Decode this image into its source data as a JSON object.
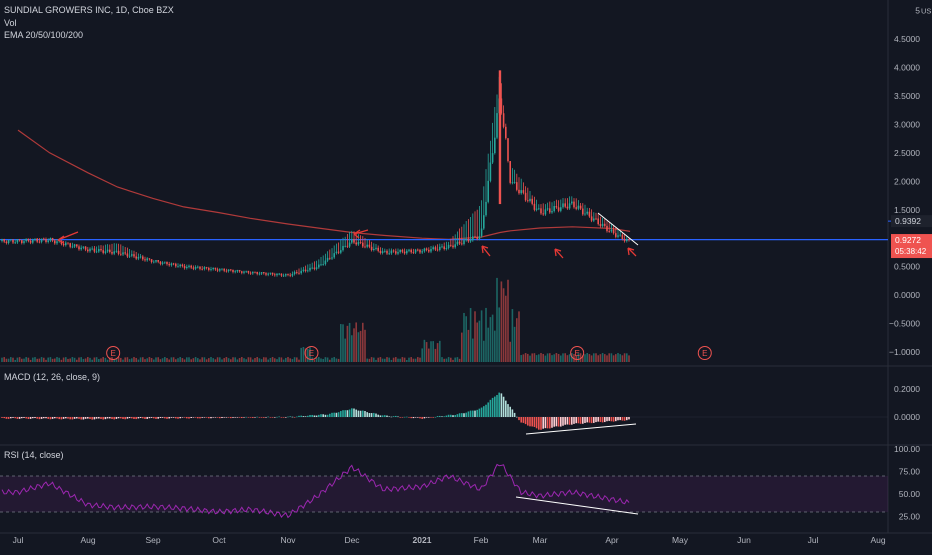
{
  "header": {
    "symbol_line": "SUNDIAL GROWERS INC, 1D, Cboe BZX",
    "vol_label": "Vol",
    "ema_label": "EMA 20/50/100/200"
  },
  "price_axis": {
    "currency": "USD",
    "ticks": [
      "5",
      "4.5000",
      "4.0000",
      "3.5000",
      "3.0000",
      "2.5000",
      "2.0000",
      "1.5000",
      "1.0000",
      "0.5000",
      "0.0000",
      "−0.5000",
      "−1.0000"
    ],
    "ema_badge": "0.9392",
    "price_badge": "0.9272",
    "countdown_badge": "05:38:42"
  },
  "macd": {
    "label": "MACD (12, 26, close, 9)",
    "ticks": [
      "0.2000",
      "0.0000"
    ]
  },
  "rsi": {
    "label": "RSI (14, close)",
    "ticks": [
      "100.00",
      "75.00",
      "50.00",
      "25.00"
    ]
  },
  "time_axis": {
    "ticks": [
      "Jul",
      "Aug",
      "Sep",
      "Oct",
      "Nov",
      "Dec",
      "2021",
      "Feb",
      "Mar",
      "Apr",
      "May",
      "Jun",
      "Jul",
      "Aug"
    ]
  },
  "earnings_marker": "E",
  "colors": {
    "background": "#131722",
    "up": "#26a69a",
    "down": "#ef5350",
    "ema": "#b03a3a",
    "hline": "#2962ff",
    "rsi": "#9c27b0",
    "annotation": "#e53935"
  },
  "chart_data": [
    {
      "type": "candlestick",
      "title": "SUNDIAL GROWERS INC, 1D, Cboe BZX",
      "ylabel": "USD",
      "ylim": [
        -1.1,
        5.1
      ],
      "x": [
        "2020-07-01",
        "2020-07-15",
        "2020-08-01",
        "2020-08-15",
        "2020-09-01",
        "2020-09-15",
        "2020-10-01",
        "2020-10-15",
        "2020-11-01",
        "2020-11-15",
        "2020-12-01",
        "2020-12-15",
        "2021-01-01",
        "2021-01-15",
        "2021-02-01",
        "2021-02-10",
        "2021-02-15",
        "2021-03-01",
        "2021-03-15",
        "2021-04-01",
        "2021-04-09"
      ],
      "close": [
        0.95,
        0.97,
        0.8,
        0.75,
        0.6,
        0.5,
        0.45,
        0.4,
        0.35,
        0.5,
        0.95,
        0.75,
        0.78,
        0.85,
        1.05,
        3.5,
        2.0,
        1.45,
        1.6,
        1.1,
        0.93
      ],
      "high": [
        0.98,
        1.02,
        0.85,
        0.92,
        0.62,
        0.55,
        0.48,
        0.42,
        0.38,
        0.62,
        1.15,
        0.82,
        0.82,
        0.95,
        1.6,
        3.95,
        2.3,
        1.6,
        1.75,
        1.25,
        1.0
      ],
      "ema_200": [
        2.9,
        2.5,
        2.15,
        1.9,
        1.7,
        1.55,
        1.45,
        1.35,
        1.25,
        1.18,
        1.1,
        1.05,
        1.0,
        0.98,
        1.02,
        1.1,
        1.13,
        1.18,
        1.2,
        1.17,
        1.12
      ],
      "hline": 0.975,
      "earnings": [
        "2020-08-13",
        "2020-11-12",
        "2021-03-17",
        "2021-05-13"
      ]
    },
    {
      "type": "bar",
      "title": "MACD (12, 26, close, 9)",
      "ylim": [
        -0.12,
        0.3
      ],
      "x": [
        "2020-07-01",
        "2020-08-01",
        "2020-09-01",
        "2020-10-01",
        "2020-11-01",
        "2020-11-20",
        "2020-12-01",
        "2020-12-15",
        "2021-01-01",
        "2021-01-20",
        "2021-02-01",
        "2021-02-10",
        "2021-02-20",
        "2021-03-01",
        "2021-03-15",
        "2021-04-01",
        "2021-04-09"
      ],
      "values": [
        -0.01,
        -0.015,
        -0.01,
        -0.005,
        0.0,
        0.02,
        0.06,
        0.01,
        -0.01,
        0.02,
        0.06,
        0.18,
        -0.04,
        -0.09,
        -0.05,
        -0.03,
        -0.02
      ]
    },
    {
      "type": "line",
      "title": "RSI (14, close)",
      "ylim": [
        20,
        100
      ],
      "x": [
        "2020-07-01",
        "2020-07-15",
        "2020-08-01",
        "2020-08-15",
        "2020-09-01",
        "2020-09-15",
        "2020-10-01",
        "2020-10-15",
        "2020-11-01",
        "2020-11-15",
        "2020-12-01",
        "2020-12-15",
        "2021-01-01",
        "2021-01-15",
        "2021-02-01",
        "2021-02-10",
        "2021-02-20",
        "2021-03-01",
        "2021-03-15",
        "2021-04-01",
        "2021-04-09"
      ],
      "values": [
        52,
        62,
        38,
        35,
        36,
        34,
        30,
        33,
        26,
        48,
        80,
        55,
        58,
        70,
        55,
        85,
        52,
        48,
        52,
        44,
        40
      ],
      "bands": [
        30,
        70
      ]
    }
  ]
}
